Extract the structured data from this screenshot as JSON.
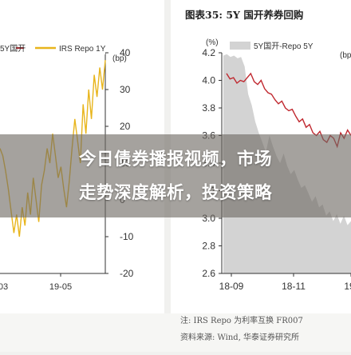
{
  "banner": {
    "line1": "今日债券播报视频，市场",
    "line2": "走势深度解析，投资策略"
  },
  "notes": {
    "note": "注: IRS Repo 为利率互换 FR007",
    "source": "资料来源: Wind, 华泰证券研究所"
  },
  "colors": {
    "repo_line": "#e8b51c",
    "bond_line": "#c0282f",
    "area_fill": "#d3d3d3",
    "axis": "#333333"
  },
  "chart_data": [
    {
      "type": "line",
      "id": "left-chart",
      "legend": [
        "5Y国开",
        "IRS Repo 1Y"
      ],
      "right_axis_unit": "(bp)",
      "yticks": [
        40,
        30,
        20,
        10,
        0,
        -10,
        -20
      ],
      "ylim": [
        -20,
        40
      ],
      "xticks": [
        "03",
        "19-05"
      ],
      "series": [
        {
          "name": "IRS Repo 1Y",
          "values": [
            14,
            12,
            8,
            3,
            -3,
            -9,
            -4,
            -10,
            -2,
            -7,
            2,
            -4,
            6,
            0,
            -6,
            4,
            8,
            14,
            10,
            18,
            12,
            6,
            9,
            3,
            -2,
            5,
            14,
            22,
            16,
            10,
            26,
            18,
            30,
            22,
            34,
            28,
            36,
            30,
            38
          ]
        }
      ]
    },
    {
      "type": "area",
      "id": "right-chart",
      "title": "图表35:  5Y 国开养券回购",
      "legend": [
        "5Y国开-Repo 5Y"
      ],
      "left_axis_unit": "(%)",
      "right_axis_unit": "(bp",
      "yticks": [
        4.2,
        4.0,
        3.8,
        3.6,
        3.4,
        3.2,
        3.0,
        2.8,
        2.6
      ],
      "ylim": [
        2.6,
        4.2
      ],
      "xticks": [
        "18-09",
        "18-11",
        "19-"
      ],
      "series": [
        {
          "name": "5Y国开",
          "values": [
            4.05,
            4.01,
            4.02,
            3.98,
            4.0,
            3.99,
            4.02,
            4.05,
            3.99,
            3.97,
            4.0,
            3.94,
            3.91,
            3.9,
            3.86,
            3.83,
            3.85,
            3.8,
            3.78,
            3.79,
            3.74,
            3.7,
            3.72,
            3.66,
            3.68,
            3.62,
            3.6,
            3.63,
            3.57,
            3.55,
            3.6,
            3.58,
            3.52,
            3.62,
            3.58,
            3.64,
            3.6
          ]
        },
        {
          "name": "5Y国开-Repo 5Y",
          "values": [
            4.18,
            4.19,
            4.17,
            4.18,
            4.16,
            4.17,
            4.1,
            3.9,
            3.82,
            3.7,
            3.62,
            3.55,
            3.48,
            3.6,
            3.52,
            3.45,
            3.4,
            3.47,
            3.38,
            3.32,
            3.35,
            3.28,
            3.22,
            3.24,
            3.18,
            3.12,
            3.16,
            3.08,
            3.1,
            3.02,
            3.05,
            2.98,
            3.03,
            2.96,
            3.02,
            2.95,
            2.98
          ]
        }
      ]
    }
  ]
}
